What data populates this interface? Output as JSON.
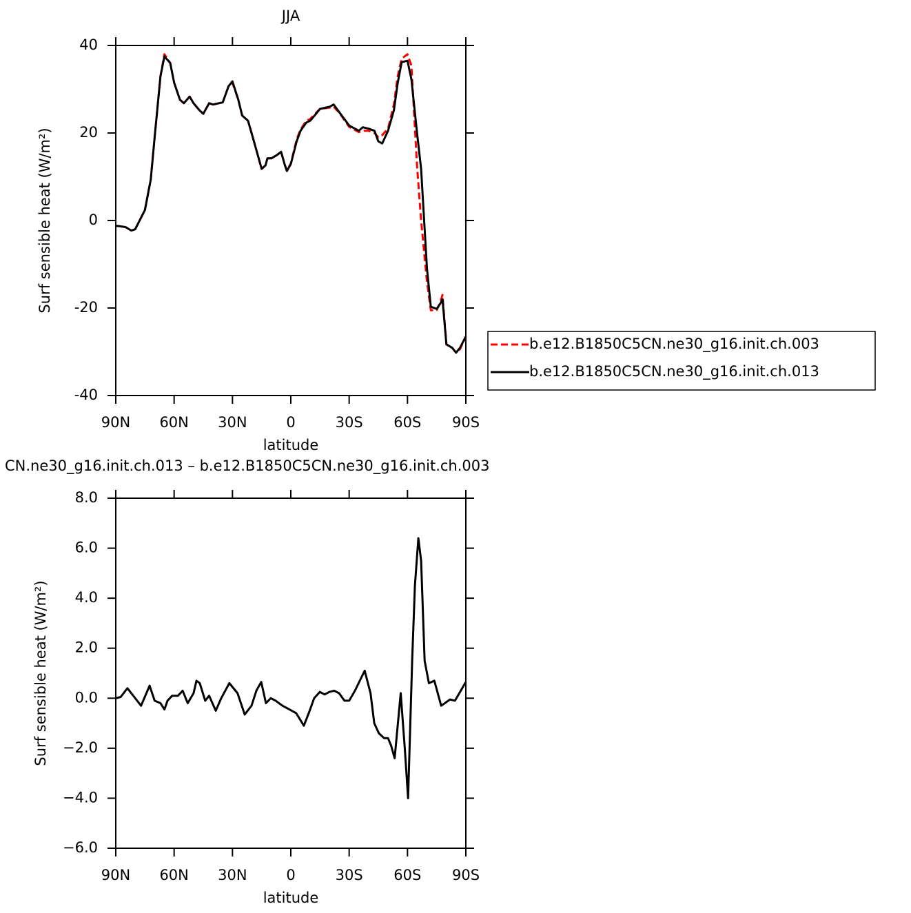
{
  "chart_data": [
    {
      "type": "line",
      "title": "JJA",
      "x_label": "latitude",
      "y_label": "Surf  sensible  heat  (W/m²)",
      "x": [
        90,
        85,
        82,
        80,
        75,
        72,
        70,
        67,
        65,
        62,
        60,
        57,
        55,
        52,
        50,
        47,
        45,
        42,
        40,
        37,
        35,
        32,
        30,
        27,
        25,
        22,
        20,
        17,
        15,
        13,
        12,
        10,
        7,
        5,
        3,
        2,
        0,
        -3,
        -5,
        -8,
        -10,
        -13,
        -15,
        -20,
        -22,
        -25,
        -30,
        -35,
        -37,
        -40,
        -43,
        -45,
        -47,
        -50,
        -53,
        -55,
        -57,
        -60,
        -62,
        -65,
        -67,
        -70,
        -72,
        -75,
        -77,
        -78,
        -80,
        -83,
        -85,
        -87,
        -90
      ],
      "series": [
        {
          "name": "b.e12.B1850C5CN.ne30_g16.init.ch.003",
          "color": "#ff0000",
          "line_style": "dashed",
          "values": [
            -1.2,
            -1.5,
            -2.3,
            -2,
            2.4,
            9.4,
            19,
            33,
            38,
            36,
            31.5,
            27.6,
            26.8,
            28.3,
            26.8,
            25.2,
            24.4,
            26.8,
            26.5,
            26.8,
            27,
            30.7,
            31.5,
            27.6,
            24,
            22.8,
            19.7,
            15,
            11.8,
            12.6,
            14.2,
            14.2,
            15,
            15.7,
            12.6,
            11.5,
            13,
            18.5,
            20.8,
            22.8,
            23.2,
            24.6,
            25.5,
            25.8,
            26,
            24.6,
            21.4,
            20.2,
            20.5,
            20.5,
            20,
            19,
            19.5,
            21,
            26.5,
            33,
            37,
            38,
            35.4,
            12,
            0,
            -14,
            -20.5,
            -20.5,
            -18.5,
            -17,
            -28.3,
            -29.1,
            -30.2,
            -29.4,
            -26.5
          ]
        },
        {
          "name": "b.e12.B1850C5CN.ne30_g16.init.ch.013",
          "color": "#000000",
          "line_style": "solid",
          "values": [
            -1.2,
            -1.5,
            -2.3,
            -2,
            2.4,
            9.4,
            19,
            33,
            37.5,
            36,
            31.5,
            27.6,
            26.8,
            28.3,
            26.8,
            25.2,
            24.4,
            26.8,
            26.5,
            26.8,
            27,
            30.7,
            31.8,
            27.6,
            24,
            22.8,
            19.7,
            15,
            11.8,
            12.6,
            14.2,
            14.2,
            15,
            15.7,
            12.6,
            11.3,
            12.9,
            18.1,
            20.5,
            22.4,
            22.8,
            24.4,
            25.5,
            26,
            26.5,
            24.7,
            21.7,
            20.5,
            21.3,
            21,
            20.5,
            18.1,
            17.6,
            20.5,
            25.2,
            31.5,
            36.2,
            36.5,
            32.3,
            19.7,
            11.8,
            -11,
            -19.7,
            -20.2,
            -18.9,
            -18,
            -28.3,
            -29.1,
            -30.2,
            -29.1,
            -26.5
          ]
        }
      ],
      "xlim": [
        90,
        -90
      ],
      "xticks": [
        {
          "value": 90,
          "label": "90N"
        },
        {
          "value": 60,
          "label": "60N"
        },
        {
          "value": 30,
          "label": "30N"
        },
        0,
        {
          "value": -30,
          "label": "30S"
        },
        {
          "value": -60,
          "label": "60S"
        },
        {
          "value": -90,
          "label": "90S"
        }
      ],
      "ylim": [
        -40,
        40
      ],
      "yticks": [
        -40,
        -20,
        0,
        20,
        40
      ],
      "legend": "right"
    },
    {
      "type": "line",
      "title": "CN.ne30_g16.init.ch.013 – b.e12.B1850C5CN.ne30_g16.init.ch.003",
      "x_label": "latitude",
      "y_label": "Surf  sensible  heat  (W/m²)",
      "x": [
        90,
        87.5,
        84,
        81,
        77,
        72.6,
        70,
        67,
        65,
        63.4,
        61,
        58,
        55.6,
        53,
        50,
        48.5,
        46.8,
        44,
        42,
        38.6,
        35.8,
        31.6,
        27.4,
        23.7,
        20.2,
        17.7,
        15.2,
        12.8,
        10.3,
        7.8,
        4.3,
        0.7,
        -2.8,
        -6.7,
        -9.2,
        -12,
        -14.9,
        -17.4,
        -19.8,
        -22.3,
        -24.8,
        -27.6,
        -30,
        -33,
        -38,
        -41,
        -42.9,
        -45.3,
        -48,
        -50,
        -51.6,
        -53.4,
        -56.5,
        -58.6,
        -60.3,
        -62.4,
        -63.8,
        -65.6,
        -67,
        -68.8,
        -71,
        -73.8,
        -77.3,
        -81.9,
        -84.4,
        -90
      ],
      "series": [
        {
          "color": "#000000",
          "line_style": "solid",
          "values": [
            0,
            0.05,
            0.4,
            0.1,
            -0.3,
            0.5,
            -0.1,
            -0.2,
            -0.45,
            -0.1,
            0.1,
            0.1,
            0.3,
            -0.2,
            0.2,
            0.7,
            0.6,
            -0.1,
            0.1,
            -0.5,
            0,
            0.6,
            0.2,
            -0.65,
            -0.3,
            0.3,
            0.65,
            -0.2,
            0,
            -0.1,
            -0.3,
            -0.45,
            -0.6,
            -1.1,
            -0.6,
            0,
            0.25,
            0.15,
            0.25,
            0.3,
            0.2,
            -0.1,
            -0.1,
            0.3,
            1.1,
            0.2,
            -1,
            -1.4,
            -1.6,
            -1.6,
            -1.9,
            -2.4,
            0.2,
            -2,
            -4,
            1.5,
            4.5,
            6.4,
            5.5,
            1.5,
            0.6,
            0.7,
            -0.3,
            -0.05,
            -0.1,
            0.65
          ]
        }
      ],
      "xlim": [
        90,
        -90
      ],
      "xticks": [
        {
          "value": 90,
          "label": "90N"
        },
        {
          "value": 60,
          "label": "60N"
        },
        {
          "value": 30,
          "label": "30N"
        },
        0,
        {
          "value": -30,
          "label": "30S"
        },
        {
          "value": -60,
          "label": "60S"
        },
        {
          "value": -90,
          "label": "90S"
        }
      ],
      "ylim": [
        -6,
        8
      ],
      "yticks": [
        {
          "value": -6,
          "label": "−6.0"
        },
        {
          "value": -4,
          "label": "−4.0"
        },
        {
          "value": -2,
          "label": "−2.0"
        },
        {
          "value": 0,
          "label": "0.0"
        },
        {
          "value": 2,
          "label": "2.0"
        },
        {
          "value": 4,
          "label": "4.0"
        },
        {
          "value": 6,
          "label": "6.0"
        },
        {
          "value": 8,
          "label": "8.0"
        }
      ]
    }
  ]
}
